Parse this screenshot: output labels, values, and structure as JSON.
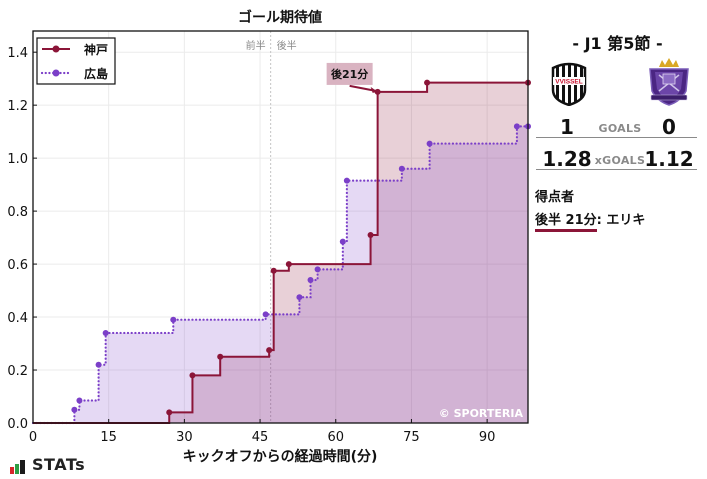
{
  "chart_data": {
    "type": "line",
    "drawstyle": "steps-post",
    "title": "ゴール期待値",
    "xlabel": "キックオフからの経過時間(分)",
    "ylabel": "",
    "xlim": [
      0,
      98.1
    ],
    "ylim": [
      0,
      1.48
    ],
    "xticks": [
      0,
      15,
      30,
      45,
      60,
      75,
      90
    ],
    "xtick_labels": [
      "0",
      "15",
      "30",
      "45",
      "60",
      "75",
      "90"
    ],
    "yticks": [
      0.0,
      0.2,
      0.4,
      0.6,
      0.8,
      1.0,
      1.2,
      1.4
    ],
    "ytick_labels": [
      "0.0",
      "0.2",
      "0.4",
      "0.6",
      "0.8",
      "1.0",
      "1.2",
      "1.4"
    ],
    "grid": true,
    "legend_position": "upper left",
    "half_time_marker": {
      "x": 47.1,
      "first_half_label": "前半",
      "second_half_label": "後半"
    },
    "series": [
      {
        "name": "神戸",
        "color": "#8B1538",
        "fill": "rgba(139,21,56,0.2)",
        "style": "solid",
        "points": [
          [
            27.0,
            0.04
          ],
          [
            31.6,
            0.18
          ],
          [
            37.1,
            0.25
          ],
          [
            46.8,
            0.275
          ],
          [
            47.7,
            0.575
          ],
          [
            50.7,
            0.6
          ],
          [
            66.9,
            0.71
          ],
          [
            68.3,
            1.25
          ],
          [
            78.1,
            1.285
          ],
          [
            98.1,
            1.285
          ]
        ]
      },
      {
        "name": "広島",
        "color": "#7B3FC8",
        "fill": "rgba(123,63,200,0.2)",
        "style": "dotted",
        "points": [
          [
            8.2,
            0.05
          ],
          [
            9.2,
            0.085
          ],
          [
            13.0,
            0.22
          ],
          [
            14.4,
            0.34
          ],
          [
            27.8,
            0.39
          ],
          [
            46.1,
            0.41
          ],
          [
            52.8,
            0.475
          ],
          [
            55.0,
            0.54
          ],
          [
            56.4,
            0.58
          ],
          [
            61.4,
            0.685
          ],
          [
            62.2,
            0.915
          ],
          [
            73.1,
            0.96
          ],
          [
            78.6,
            1.055
          ],
          [
            95.9,
            1.12
          ],
          [
            98.1,
            1.12
          ]
        ]
      }
    ],
    "annotations": [
      {
        "text": "後21分",
        "x": 68.3,
        "y": 1.25,
        "series": "神戸",
        "box_color": "#d9b3c1"
      }
    ],
    "watermark": "© SPORTERIA"
  },
  "match": {
    "round": "- J1 第5節 -",
    "home": {
      "name": "神戸",
      "logo": "vissel-kobe-crest",
      "logo_text": "VVISSEL",
      "goals": "1",
      "xg": "1.28"
    },
    "away": {
      "name": "広島",
      "logo": "sanfrecce-hiroshima-crest",
      "goals": "0",
      "xg": "1.12"
    },
    "goals_label": "GOALS",
    "xg_label": "xGOALS"
  },
  "scorers": {
    "title": "得点者",
    "items": [
      {
        "time": "後半 21分",
        "separator": ": ",
        "player": "エリキ"
      }
    ]
  },
  "branding": {
    "logo_text": "STATs",
    "bar_colors": [
      "#d7262b",
      "#2e9e44",
      "#1a1a1a"
    ]
  }
}
